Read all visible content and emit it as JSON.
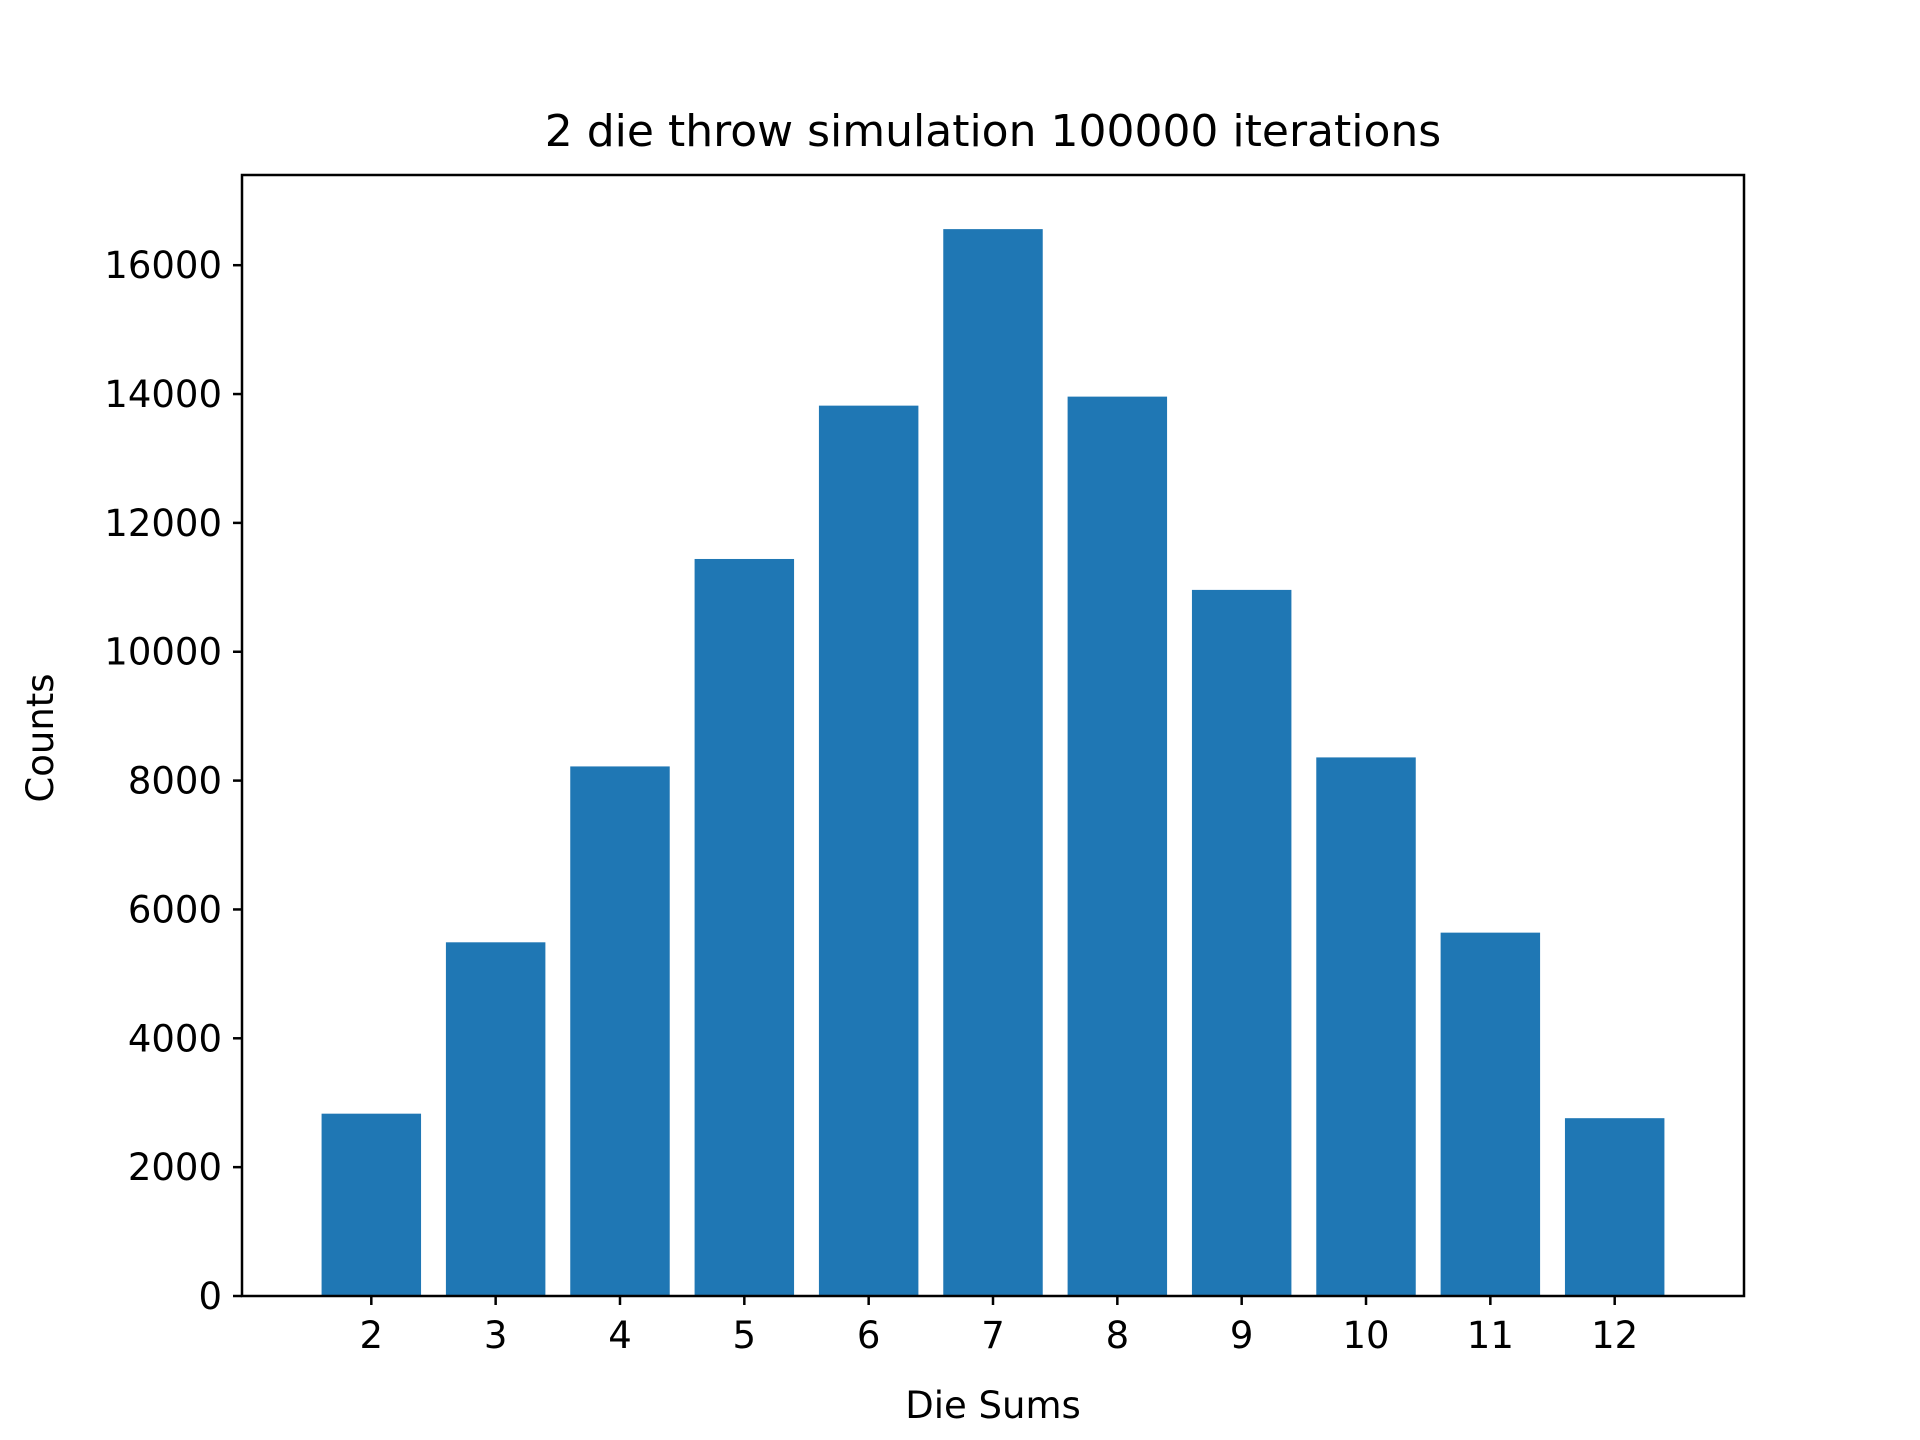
{
  "chart_data": {
    "type": "bar",
    "title": "2 die throw simulation 100000 iterations",
    "xlabel": "Die Sums",
    "ylabel": "Counts",
    "categories": [
      "2",
      "3",
      "4",
      "5",
      "6",
      "7",
      "8",
      "9",
      "10",
      "11",
      "12"
    ],
    "values": [
      2830,
      5490,
      8220,
      11440,
      13820,
      16560,
      13960,
      10960,
      8360,
      5640,
      2760
    ],
    "ylim": [
      0,
      17400
    ],
    "yticks": [
      0,
      2000,
      4000,
      6000,
      8000,
      10000,
      12000,
      14000,
      16000
    ],
    "ytick_labels": [
      "0",
      "2000",
      "4000",
      "6000",
      "8000",
      "10000",
      "12000",
      "14000",
      "16000"
    ],
    "grid": false,
    "legend": "none",
    "colors": {
      "bar": "#1f77b4",
      "axes": "#000000",
      "background": "#ffffff"
    }
  }
}
